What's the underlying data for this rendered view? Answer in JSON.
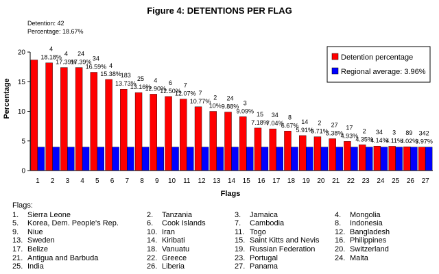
{
  "chart_data": {
    "type": "bar",
    "title": "Figure 4: DETENTIONS PER FLAG",
    "xlabel": "Flags",
    "ylabel": "Percentage",
    "ylim": [
      0,
      20
    ],
    "yticks": [
      0,
      5,
      10,
      15,
      20
    ],
    "categories": [
      "1",
      "2",
      "3",
      "4",
      "5",
      "6",
      "7",
      "8",
      "9",
      "10",
      "11",
      "12",
      "13",
      "14",
      "15",
      "16",
      "17",
      "18",
      "19",
      "20",
      "21",
      "22",
      "23",
      "24",
      "25",
      "26",
      "27"
    ],
    "series": [
      {
        "name": "Detention percentage",
        "color": "#ff0000",
        "values": [
          18.67,
          18.18,
          17.39,
          17.39,
          16.59,
          15.38,
          13.73,
          13.16,
          12.9,
          12.5,
          12.07,
          10.77,
          10,
          9.88,
          9.09,
          7.18,
          7.04,
          6.67,
          5.91,
          5.71,
          5.38,
          4.93,
          4.35,
          4.14,
          4.11,
          4.02,
          3.97
        ]
      },
      {
        "name": "Regional average: 3.96%",
        "color": "#0000ff",
        "values": [
          3.96,
          3.96,
          3.96,
          3.96,
          3.96,
          3.96,
          3.96,
          3.96,
          3.96,
          3.96,
          3.96,
          3.96,
          3.96,
          3.96,
          3.96,
          3.96,
          3.96,
          3.96,
          3.96,
          3.96,
          3.96,
          3.96,
          3.96,
          3.96,
          3.96,
          3.96,
          3.96
        ]
      }
    ],
    "data_labels": [
      {
        "line1": "Detention: 42",
        "line2": "Percentage: 18.67%"
      },
      {
        "line1": "4",
        "line2": "18.18%"
      },
      {
        "line1": "4",
        "line2": "17.39%"
      },
      {
        "line1": "24",
        "line2": "17.39%"
      },
      {
        "line1": "34",
        "line2": "16.59%"
      },
      {
        "line1": "4",
        "line2": "15.38%"
      },
      {
        "line1": "183",
        "line2": "13.73%"
      },
      {
        "line1": "25",
        "line2": "13.16%"
      },
      {
        "line1": "4",
        "line2": "12.90%"
      },
      {
        "line1": "6",
        "line2": "12.50%"
      },
      {
        "line1": "7",
        "line2": "12.07%"
      },
      {
        "line1": "7",
        "line2": "10.77%"
      },
      {
        "line1": "2",
        "line2": "10%"
      },
      {
        "line1": "24",
        "line2": "9.88%"
      },
      {
        "line1": "3",
        "line2": "9.09%"
      },
      {
        "line1": "15",
        "line2": "7.18%"
      },
      {
        "line1": "34",
        "line2": "7.04%"
      },
      {
        "line1": "8",
        "line2": "6.67%"
      },
      {
        "line1": "14",
        "line2": "5.91%"
      },
      {
        "line1": "2",
        "line2": "5.71%"
      },
      {
        "line1": "27",
        "line2": "5.38%"
      },
      {
        "line1": "17",
        "line2": "4.93%"
      },
      {
        "line1": "2",
        "line2": "4.35%"
      },
      {
        "line1": "34",
        "line2": "4.14%"
      },
      {
        "line1": "3",
        "line2": "4.11%"
      },
      {
        "line1": "89",
        "line2": "4.02%"
      },
      {
        "line1": "342",
        "line2": "3.97%"
      }
    ],
    "legend": {
      "placement": "top-right",
      "items": [
        "Detention percentage",
        "Regional average: 3.96%"
      ]
    },
    "grid": false
  },
  "flags_key": {
    "title": "Flags:",
    "items": [
      {
        "num": "1.",
        "name": "Sierra Leone"
      },
      {
        "num": "2.",
        "name": "Tanzania"
      },
      {
        "num": "3.",
        "name": "Jamaica"
      },
      {
        "num": "4.",
        "name": "Mongolia"
      },
      {
        "num": "5.",
        "name": "Korea, Dem. People's Rep."
      },
      {
        "num": "6.",
        "name": "Cook Islands"
      },
      {
        "num": "7.",
        "name": "Cambodia"
      },
      {
        "num": "8.",
        "name": "Indonesia"
      },
      {
        "num": "9.",
        "name": "Niue"
      },
      {
        "num": "10.",
        "name": "Iran"
      },
      {
        "num": "11.",
        "name": "Togo"
      },
      {
        "num": "12.",
        "name": "Bangladesh"
      },
      {
        "num": "13.",
        "name": "Sweden"
      },
      {
        "num": "14.",
        "name": "Kiribati"
      },
      {
        "num": "15.",
        "name": "Saint Kitts and Nevis"
      },
      {
        "num": "16.",
        "name": "Philippines"
      },
      {
        "num": "17.",
        "name": "Belize"
      },
      {
        "num": "18.",
        "name": "Vanuatu"
      },
      {
        "num": "19.",
        "name": "Russian Federation"
      },
      {
        "num": "20.",
        "name": "Switzerland"
      },
      {
        "num": "21.",
        "name": "Antigua and Barbuda"
      },
      {
        "num": "22.",
        "name": "Greece"
      },
      {
        "num": "23.",
        "name": "Portugal"
      },
      {
        "num": "24.",
        "name": "Malta"
      },
      {
        "num": "25.",
        "name": "India"
      },
      {
        "num": "26.",
        "name": "Liberia"
      },
      {
        "num": "27.",
        "name": "Panama"
      }
    ]
  }
}
